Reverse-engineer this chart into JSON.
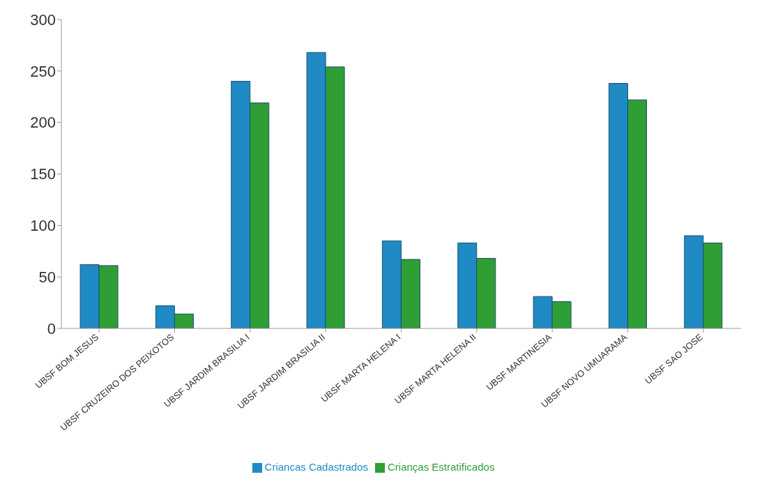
{
  "chart_data": {
    "type": "bar",
    "categories": [
      "UBSF BOM JESUS",
      "UBSF CRUZEIRO DOS PEIXOTOS",
      "UBSF JARDIM BRASILIA I",
      "UBSF JARDIM BRASILIA II",
      "UBSF MARTA HELENA I",
      "UBSF MARTA HELENA II",
      "UBSF MARTINESIA",
      "UBSF NOVO UMUARAMA",
      "UBSF SAO JOSE"
    ],
    "series": [
      {
        "name": "Criancas Cadastrados",
        "color": "#1f8ac4",
        "values": [
          62,
          22,
          240,
          268,
          85,
          83,
          31,
          238,
          90
        ]
      },
      {
        "name": "Crianças Estratificados",
        "color": "#2e9e35",
        "values": [
          61,
          14,
          219,
          254,
          67,
          68,
          26,
          222,
          83
        ]
      }
    ],
    "ylim": [
      0,
      300
    ],
    "yticks": [
      0,
      50,
      100,
      150,
      200,
      250,
      300
    ],
    "grid": false,
    "legend": "bottom"
  }
}
